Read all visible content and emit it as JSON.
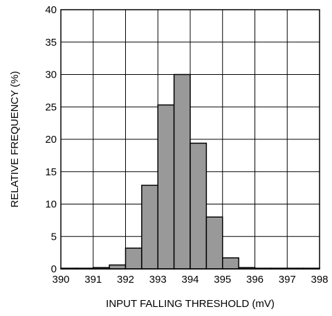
{
  "chart_data": {
    "type": "bar",
    "xlabel": "INPUT FALLING THRESHOLD (mV)",
    "ylabel": "RELATIVE FREQUENCY (%)",
    "xlim": [
      390,
      398
    ],
    "ylim": [
      0,
      40
    ],
    "x_ticks": [
      "390",
      "391",
      "392",
      "393",
      "394",
      "395",
      "396",
      "397",
      "398"
    ],
    "y_ticks": [
      "0",
      "5",
      "10",
      "15",
      "20",
      "25",
      "30",
      "35",
      "40"
    ],
    "grid": true,
    "bin_width": 0.5,
    "bins": [
      {
        "start": 390.0,
        "value": 0.1
      },
      {
        "start": 390.5,
        "value": 0.1
      },
      {
        "start": 391.0,
        "value": 0.2
      },
      {
        "start": 391.5,
        "value": 0.6
      },
      {
        "start": 392.0,
        "value": 3.2
      },
      {
        "start": 392.5,
        "value": 12.9
      },
      {
        "start": 393.0,
        "value": 25.3
      },
      {
        "start": 393.5,
        "value": 30.0
      },
      {
        "start": 394.0,
        "value": 19.4
      },
      {
        "start": 394.5,
        "value": 8.0
      },
      {
        "start": 395.0,
        "value": 1.7
      },
      {
        "start": 395.5,
        "value": 0.2
      },
      {
        "start": 396.0,
        "value": 0.1
      },
      {
        "start": 396.5,
        "value": 0.1
      },
      {
        "start": 397.0,
        "value": 0.1
      },
      {
        "start": 397.5,
        "value": 0.1
      }
    ],
    "bar_color": "#999999",
    "edge_color": "#000000"
  }
}
